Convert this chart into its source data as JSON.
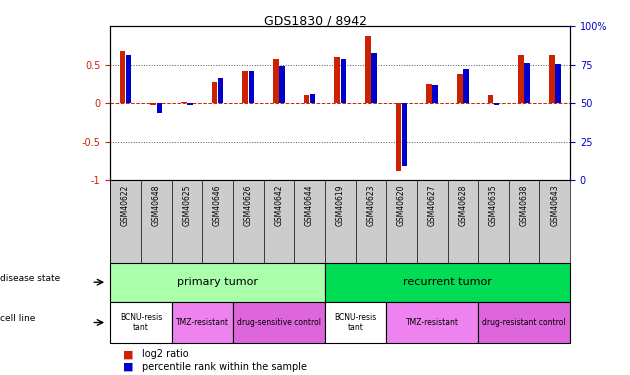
{
  "title": "GDS1830 / 8942",
  "samples": [
    "GSM40622",
    "GSM40648",
    "GSM40625",
    "GSM40646",
    "GSM40626",
    "GSM40642",
    "GSM40644",
    "GSM40619",
    "GSM40623",
    "GSM40620",
    "GSM40627",
    "GSM40628",
    "GSM40635",
    "GSM40638",
    "GSM40643"
  ],
  "log2_ratio": [
    0.68,
    -0.02,
    0.02,
    0.28,
    0.42,
    0.57,
    0.1,
    0.6,
    0.87,
    -0.88,
    0.25,
    0.38,
    0.1,
    0.63,
    0.62
  ],
  "pct_rank": [
    0.63,
    -0.13,
    -0.02,
    0.33,
    0.42,
    0.48,
    0.12,
    0.57,
    0.65,
    -0.82,
    0.23,
    0.45,
    -0.02,
    0.52,
    0.51
  ],
  "bar_width": 0.18,
  "ylim": [
    -1,
    1
  ],
  "left_color": "#cc2200",
  "right_color": "#0000cc",
  "disease_state_groups": [
    {
      "label": "primary tumor",
      "start": 0,
      "end": 7,
      "color": "#aaffaa"
    },
    {
      "label": "recurrent tumor",
      "start": 7,
      "end": 15,
      "color": "#00dd55"
    }
  ],
  "cell_line_groups": [
    {
      "label": "BCNU-resis\ntant",
      "start": 0,
      "end": 2,
      "color": "#ffffff"
    },
    {
      "label": "TMZ-resistant",
      "start": 2,
      "end": 4,
      "color": "#ee82ee"
    },
    {
      "label": "drug-sensitive control",
      "start": 4,
      "end": 7,
      "color": "#dd66dd"
    },
    {
      "label": "BCNU-resis\ntant",
      "start": 7,
      "end": 9,
      "color": "#ffffff"
    },
    {
      "label": "TMZ-resistant",
      "start": 9,
      "end": 12,
      "color": "#ee82ee"
    },
    {
      "label": "drug-resistant control",
      "start": 12,
      "end": 15,
      "color": "#dd66dd"
    }
  ],
  "bg_color": "#ffffff",
  "zero_line_color": "#cc2200",
  "dotted_color": "#555555",
  "label_area_color": "#cccccc"
}
